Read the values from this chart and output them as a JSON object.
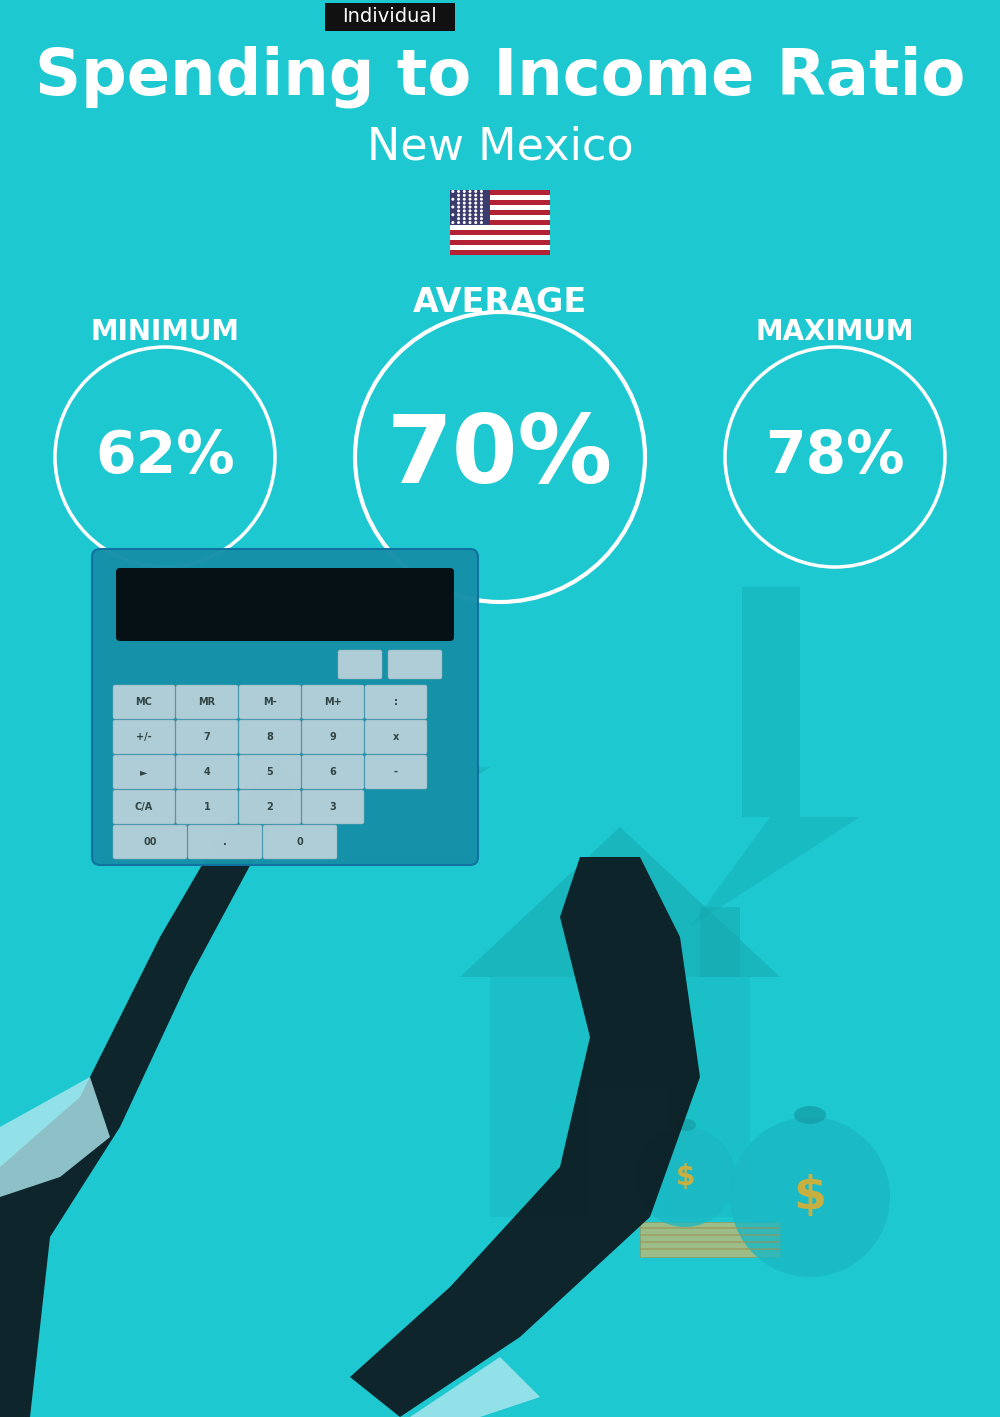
{
  "bg_color": "#1ec8d0",
  "title": "Spending to Income Ratio",
  "subtitle": "New Mexico",
  "tag_text": "Individual",
  "tag_bg": "#111111",
  "tag_fg": "#ffffff",
  "avg_label": "AVERAGE",
  "min_label": "MINIMUM",
  "max_label": "MAXIMUM",
  "min_value": "62%",
  "avg_value": "70%",
  "max_value": "78%",
  "circle_color": "#ffffff",
  "text_color": "#ffffff",
  "bg_color_dark": "#17b5bc",
  "title_fontsize": 46,
  "subtitle_fontsize": 32,
  "label_fontsize": 20,
  "value_fontsize_small": 42,
  "value_fontsize_large": 68,
  "tag_fontsize": 14,
  "fig_width": 10.0,
  "fig_height": 14.17,
  "dpi": 100
}
